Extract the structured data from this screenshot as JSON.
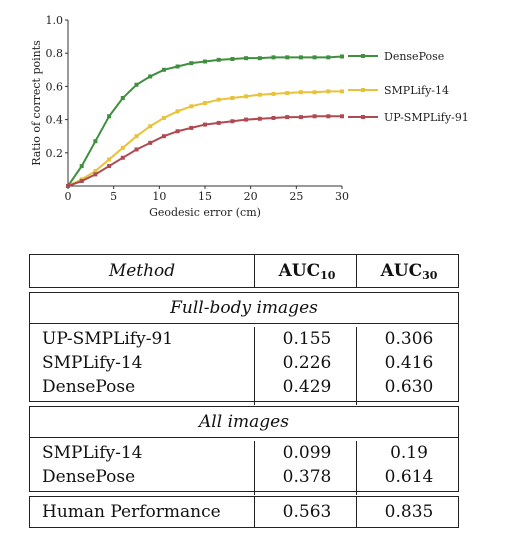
{
  "chart_data": {
    "type": "line",
    "xlabel": "Geodesic error (cm)",
    "ylabel": "Ratio of correct points",
    "xlim": [
      0,
      30
    ],
    "ylim": [
      0,
      1.0
    ],
    "xticks": [
      "0",
      "5",
      "10",
      "15",
      "20",
      "25",
      "30"
    ],
    "yticks": [
      "0.2",
      "0.4",
      "0.6",
      "0.8",
      "1.0"
    ],
    "legend_position": "right",
    "x": [
      0,
      1.5,
      3,
      4.5,
      6,
      7.5,
      9,
      10.5,
      12,
      13.5,
      15,
      16.5,
      18,
      19.5,
      21,
      22.5,
      24,
      25.5,
      27,
      28.5,
      30
    ],
    "series": [
      {
        "name": "DensePose",
        "color": "#3f8f3f",
        "values": [
          0.0,
          0.12,
          0.27,
          0.42,
          0.53,
          0.61,
          0.66,
          0.7,
          0.72,
          0.74,
          0.75,
          0.76,
          0.765,
          0.77,
          0.77,
          0.775,
          0.775,
          0.775,
          0.775,
          0.775,
          0.78
        ]
      },
      {
        "name": "SMPLify-14",
        "color": "#e8c23a",
        "values": [
          0.0,
          0.04,
          0.09,
          0.16,
          0.23,
          0.3,
          0.36,
          0.41,
          0.45,
          0.48,
          0.5,
          0.52,
          0.53,
          0.54,
          0.55,
          0.555,
          0.56,
          0.565,
          0.565,
          0.57,
          0.57
        ]
      },
      {
        "name": "UP-SMPLify-91",
        "color": "#b04a52",
        "values": [
          0.0,
          0.03,
          0.07,
          0.12,
          0.17,
          0.22,
          0.26,
          0.3,
          0.33,
          0.35,
          0.37,
          0.38,
          0.39,
          0.4,
          0.405,
          0.41,
          0.415,
          0.415,
          0.42,
          0.42,
          0.42
        ]
      }
    ]
  },
  "table": {
    "header": {
      "method": "Method",
      "auc10_main": "AUC",
      "auc10_sub": "10",
      "auc30_main": "AUC",
      "auc30_sub": "30"
    },
    "sections": [
      {
        "caption": "Full-body images",
        "rows": [
          {
            "method": "UP-SMPLify-91",
            "auc10": "0.155",
            "auc30": "0.306"
          },
          {
            "method": "SMPLify-14",
            "auc10": "0.226",
            "auc30": "0.416"
          },
          {
            "method": "DensePose",
            "auc10": "0.429",
            "auc30": "0.630"
          }
        ]
      },
      {
        "caption": "All images",
        "rows": [
          {
            "method": "SMPLify-14",
            "auc10": "0.099",
            "auc30": "0.19"
          },
          {
            "method": "DensePose",
            "auc10": "0.378",
            "auc30": "0.614"
          }
        ]
      }
    ],
    "footer": {
      "method": "Human Performance",
      "auc10": "0.563",
      "auc30": "0.835"
    }
  }
}
